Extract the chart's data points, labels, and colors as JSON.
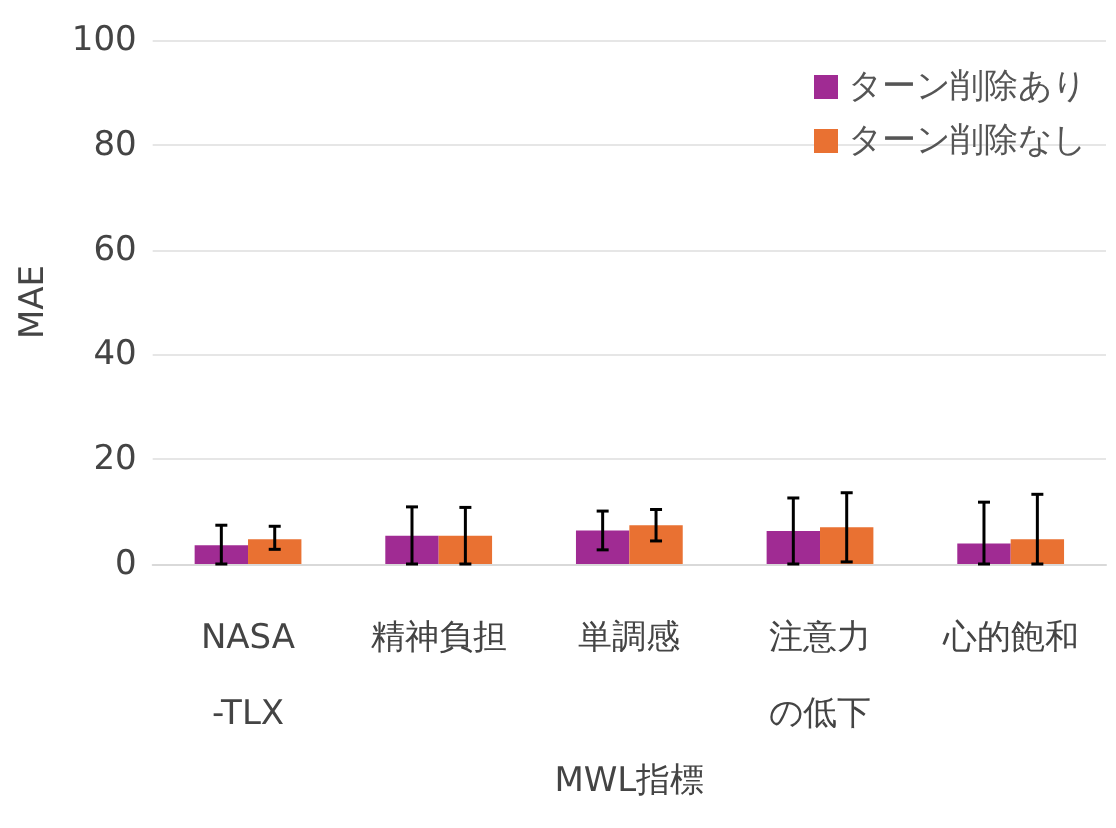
{
  "chart_data": {
    "type": "bar",
    "xlabel": "MWL指標",
    "ylabel": "MAE",
    "categories": [
      "NASA-TLX",
      "精神負担",
      "単調感",
      "注意力の低下",
      "心的飽和"
    ],
    "series": [
      {
        "name": "ターン削除あり",
        "color": "#a02b93",
        "values": [
          3.6,
          5.4,
          6.4,
          6.3,
          3.9
        ],
        "errors": [
          [
            0,
            7.4
          ],
          [
            0,
            10.9
          ],
          [
            2.7,
            10.1
          ],
          [
            0,
            12.6
          ],
          [
            0,
            11.8
          ]
        ]
      },
      {
        "name": "ターン削除なし",
        "color": "#e97132",
        "values": [
          4.7,
          5.4,
          7.4,
          7.0,
          4.7
        ],
        "errors": [
          [
            2.8,
            7.2
          ],
          [
            0,
            10.8
          ],
          [
            4.4,
            10.4
          ],
          [
            0.4,
            13.6
          ],
          [
            0,
            13.3
          ]
        ]
      }
    ],
    "ylim": [
      0,
      100
    ],
    "yticks": [
      0,
      20,
      40,
      60,
      80,
      100
    ],
    "grid": "y",
    "legend": "top right"
  }
}
